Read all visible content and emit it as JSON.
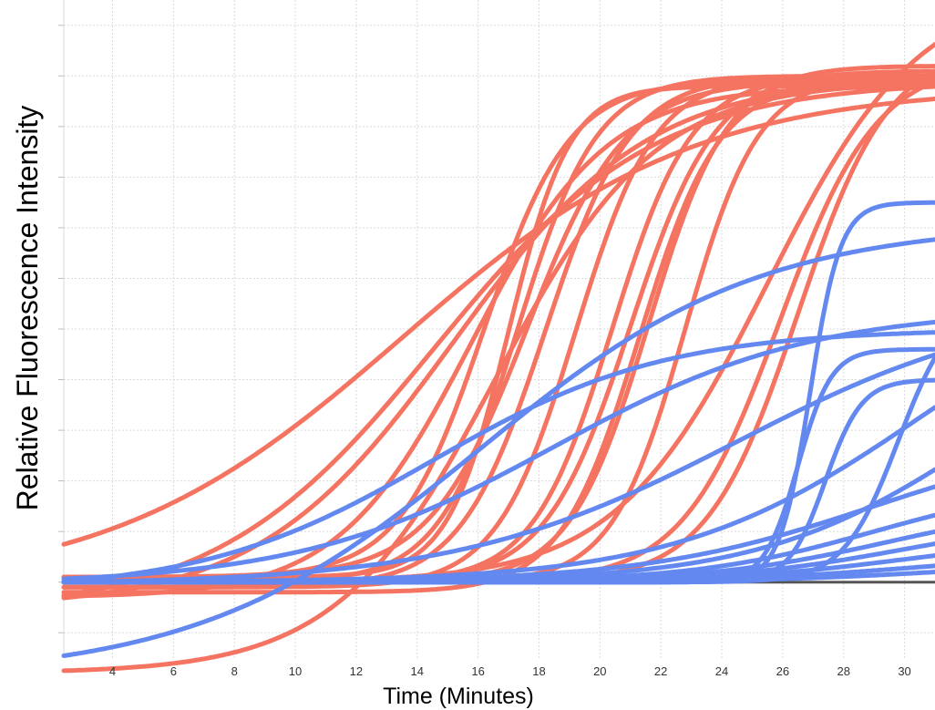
{
  "chart_data": {
    "type": "line",
    "title": "",
    "xlabel": "Time (Minutes)",
    "ylabel": "Relative Fluorescence Intensity",
    "xlim": [
      2.4,
      31.0
    ],
    "ylim": [
      -1.5,
      11.5
    ],
    "x_ticks": [
      4,
      6,
      8,
      10,
      12,
      14,
      16,
      18,
      20,
      22,
      24,
      26,
      28,
      30
    ],
    "y_gridlines": [
      -1,
      0,
      1,
      2,
      3,
      4,
      5,
      6,
      7,
      8,
      9,
      10,
      11
    ],
    "grid": true,
    "legend": "none",
    "colors": {
      "red": "#f47461",
      "blue": "#6388f0",
      "baseline": "#555555",
      "grid": "#dadada"
    },
    "series": [
      {
        "color": "red",
        "low": -0.15,
        "high": 9.8,
        "mid": 13.5,
        "width": 4.8
      },
      {
        "color": "red",
        "low": -0.6,
        "high": 9.9,
        "mid": 14.6,
        "width": 3.6
      },
      {
        "color": "red",
        "low": -0.5,
        "high": 10.0,
        "mid": 15.2,
        "width": 3.2
      },
      {
        "color": "red",
        "low": -0.3,
        "high": 9.8,
        "mid": 15.8,
        "width": 2.2
      },
      {
        "color": "red",
        "low": 0.1,
        "high": 9.9,
        "mid": 16.2,
        "width": 1.4
      },
      {
        "color": "red",
        "low": -1.8,
        "high": 9.9,
        "mid": 16.6,
        "width": 2.6
      },
      {
        "color": "red",
        "low": 0.1,
        "high": 9.8,
        "mid": 17.0,
        "width": 1.0
      },
      {
        "color": "red",
        "low": 0.0,
        "high": 10.0,
        "mid": 17.3,
        "width": 1.3
      },
      {
        "color": "red",
        "low": 0.1,
        "high": 9.9,
        "mid": 17.6,
        "width": 1.6
      },
      {
        "color": "red",
        "low": -0.1,
        "high": 10.0,
        "mid": 18.2,
        "width": 1.4
      },
      {
        "color": "red",
        "low": -0.1,
        "high": 10.0,
        "mid": 19.2,
        "width": 1.3
      },
      {
        "color": "red",
        "low": 0.0,
        "high": 10.0,
        "mid": 20.4,
        "width": 1.3
      },
      {
        "color": "red",
        "low": 0.0,
        "high": 10.1,
        "mid": 21.0,
        "width": 1.4
      },
      {
        "color": "red",
        "low": -0.2,
        "high": 9.9,
        "mid": 21.3,
        "width": 1.3
      },
      {
        "color": "red",
        "low": 0.0,
        "high": 10.2,
        "mid": 21.6,
        "width": 1.3
      },
      {
        "color": "red",
        "low": 0.0,
        "high": 10.0,
        "mid": 22.8,
        "width": 1.2
      },
      {
        "color": "red",
        "low": 0.0,
        "high": 11.8,
        "mid": 25.5,
        "width": 2.5
      },
      {
        "color": "red",
        "low": 0.0,
        "high": 10.3,
        "mid": 25.9,
        "width": 1.6
      },
      {
        "color": "red",
        "low": 0.0,
        "high": 10.6,
        "mid": 26.5,
        "width": 1.5
      },
      {
        "color": "blue",
        "low": -1.9,
        "high": 7.1,
        "mid": 16.0,
        "width": 4.6
      },
      {
        "color": "blue",
        "low": -0.2,
        "high": 5.0,
        "mid": 14.5,
        "width": 3.8
      },
      {
        "color": "blue",
        "low": -0.05,
        "high": 5.4,
        "mid": 18.5,
        "width": 4.2
      },
      {
        "color": "blue",
        "low": -0.05,
        "high": 5.6,
        "mid": 24.5,
        "width": 4.6
      },
      {
        "color": "blue",
        "low": 0.0,
        "high": 6.5,
        "mid": 30.5,
        "width": 4.0
      },
      {
        "color": "blue",
        "low": 0.0,
        "high": 5.6,
        "mid": 32.5,
        "width": 3.6
      },
      {
        "color": "blue",
        "low": 0.0,
        "high": 3.0,
        "mid": 29.0,
        "width": 3.8
      },
      {
        "color": "blue",
        "low": 0.0,
        "high": 2.0,
        "mid": 29.0,
        "width": 3.0
      },
      {
        "color": "blue",
        "low": 0.0,
        "high": 1.6,
        "mid": 29.5,
        "width": 3.0
      },
      {
        "color": "blue",
        "low": 0.0,
        "high": 1.3,
        "mid": 30.0,
        "width": 3.0
      },
      {
        "color": "blue",
        "low": 0.0,
        "high": 0.9,
        "mid": 30.0,
        "width": 3.0
      },
      {
        "color": "blue",
        "low": 0.0,
        "high": 0.55,
        "mid": 30.0,
        "width": 3.0
      },
      {
        "color": "blue",
        "low": 0.0,
        "high": 0.4,
        "mid": 31.0,
        "width": 3.0
      },
      {
        "color": "blue",
        "low": 0.0,
        "high": 7.5,
        "mid": 26.9,
        "width": 0.5
      },
      {
        "color": "blue",
        "low": 0.0,
        "high": 4.6,
        "mid": 26.5,
        "width": 0.55
      },
      {
        "color": "blue",
        "low": 0.0,
        "high": 4.0,
        "mid": 27.4,
        "width": 0.6
      },
      {
        "color": "blue",
        "low": 0.0,
        "high": 5.6,
        "mid": 29.8,
        "width": 0.9
      }
    ]
  }
}
